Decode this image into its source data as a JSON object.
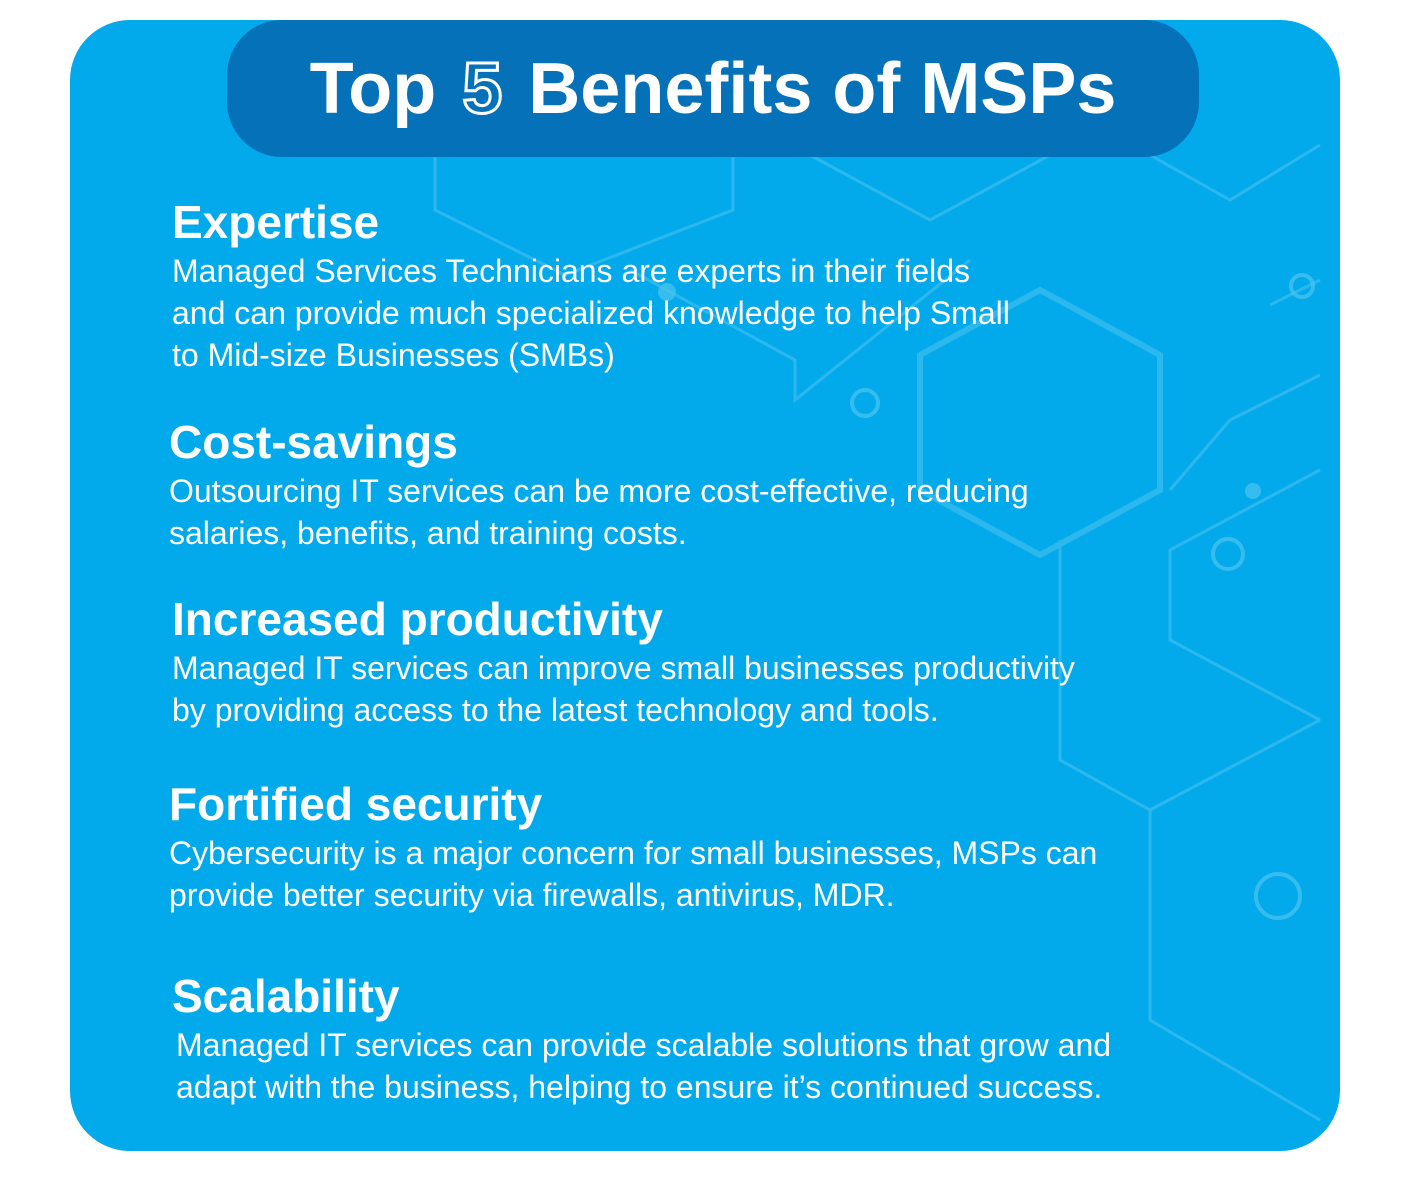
{
  "title": {
    "before": "Top",
    "number": "5",
    "after": "Benefits of MSPs"
  },
  "colors": {
    "card_background": "#03aaeb",
    "title_pill": "#0471b8",
    "text": "#ffffff",
    "pattern_lines": "#4fc3f0"
  },
  "benefits": [
    {
      "heading": "Expertise",
      "lines": [
        "Managed Services Technicians are experts in their fields",
        "and can provide much specialized knowledge to help Small",
        "to Mid-size Businesses (SMBs)"
      ]
    },
    {
      "heading": "Cost-savings",
      "lines": [
        "Outsourcing IT services can be more cost-effective, reducing",
        "salaries, benefits, and training costs."
      ]
    },
    {
      "heading": "Increased productivity",
      "lines": [
        "Managed IT services can improve small businesses productivity",
        "by providing access to the latest technology and tools."
      ]
    },
    {
      "heading": "Fortified security",
      "lines": [
        "Cybersecurity is a major concern for small businesses, MSPs can",
        "provide better security via firewalls, antivirus, MDR."
      ]
    },
    {
      "heading": "Scalability",
      "lines": [
        "Managed IT services can provide scalable solutions that grow and",
        "adapt with the business, helping to ensure it’s continued success."
      ]
    }
  ]
}
